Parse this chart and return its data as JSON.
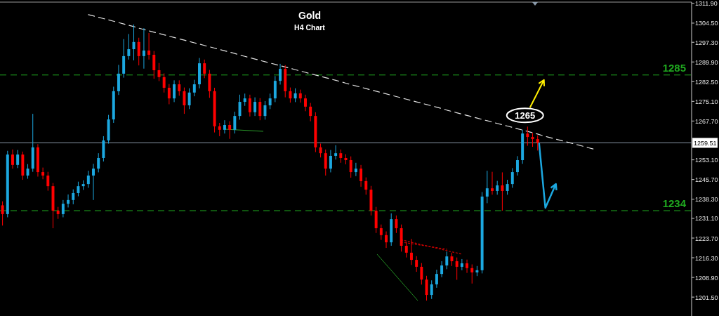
{
  "chart_data": {
    "type": "candlestick",
    "title": "Gold",
    "subtitle": "H4 Chart",
    "categories": [
      null,
      null,
      null,
      null,
      null,
      null,
      null,
      null,
      null,
      null,
      null,
      null,
      null,
      null,
      null,
      null,
      null,
      null,
      null,
      null,
      null,
      null,
      null,
      null,
      null,
      null,
      null,
      null,
      null,
      null,
      null,
      null,
      null,
      null,
      null,
      null,
      null,
      null,
      null,
      null,
      null,
      null,
      null,
      null,
      null,
      null,
      null,
      null,
      null,
      null,
      null,
      null,
      null,
      null,
      null,
      null,
      null,
      null,
      null,
      null,
      null,
      null,
      null,
      null,
      null,
      null,
      null,
      null,
      null,
      null,
      null,
      null,
      null,
      null,
      null,
      null,
      null,
      null,
      null,
      null,
      null,
      null,
      null,
      null,
      null,
      null,
      null,
      null,
      null,
      null,
      null,
      null,
      null,
      null,
      null,
      null,
      null,
      null,
      null,
      null,
      null,
      null,
      null,
      null,
      null,
      null,
      null,
      null,
      null,
      null,
      null,
      null,
      null,
      null,
      null,
      null,
      null,
      null,
      null,
      null,
      null,
      null,
      null,
      null,
      null,
      null,
      null,
      null,
      null,
      null,
      null,
      null,
      null,
      null,
      null,
      null,
      null
    ],
    "ohlc": [
      [
        1236.0,
        1237.5,
        1228.4,
        1232.7
      ],
      [
        1232.7,
        1256.5,
        1231.5,
        1255.1
      ],
      [
        1255.1,
        1257.0,
        1249.8,
        1251.2
      ],
      [
        1251.2,
        1256.8,
        1250.0,
        1255.1
      ],
      [
        1255.1,
        1256.2,
        1245.6,
        1247.2
      ],
      [
        1247.2,
        1251.5,
        1246.0,
        1249.8
      ],
      [
        1249.8,
        1270.4,
        1248.6,
        1257.8
      ],
      [
        1257.8,
        1259.0,
        1246.8,
        1248.5
      ],
      [
        1248.5,
        1250.2,
        1245.8,
        1247.2
      ],
      [
        1247.2,
        1248.6,
        1241.5,
        1243.2
      ],
      [
        1243.2,
        1244.4,
        1227.4,
        1234.0
      ],
      [
        1234.0,
        1235.4,
        1230.9,
        1232.7
      ],
      [
        1232.7,
        1238.0,
        1231.5,
        1236.6
      ],
      [
        1236.6,
        1240.1,
        1235.2,
        1238.0
      ],
      [
        1238.0,
        1242.0,
        1236.4,
        1240.6
      ],
      [
        1240.6,
        1244.9,
        1239.4,
        1243.2
      ],
      [
        1243.2,
        1245.4,
        1241.8,
        1244.0
      ],
      [
        1244.0,
        1249.0,
        1242.6,
        1247.2
      ],
      [
        1247.2,
        1251.6,
        1238.0,
        1249.8
      ],
      [
        1249.8,
        1255.6,
        1248.4,
        1253.8
      ],
      [
        1253.8,
        1262.0,
        1252.5,
        1260.4
      ],
      [
        1260.4,
        1270.0,
        1259.2,
        1268.3
      ],
      [
        1268.3,
        1280.6,
        1267.0,
        1278.9
      ],
      [
        1278.9,
        1288.8,
        1277.5,
        1285.5
      ],
      [
        1285.5,
        1298.5,
        1284.0,
        1292.1
      ],
      [
        1292.1,
        1300.4,
        1290.8,
        1294.7
      ],
      [
        1294.7,
        1304.0,
        1290.5,
        1297.4
      ],
      [
        1297.4,
        1299.0,
        1288.6,
        1292.1
      ],
      [
        1292.1,
        1302.6,
        1287.4,
        1294.2
      ],
      [
        1294.2,
        1300.8,
        1290.8,
        1292.6
      ],
      [
        1292.6,
        1294.0,
        1283.6,
        1286.8
      ],
      [
        1286.8,
        1289.5,
        1282.7,
        1284.2
      ],
      [
        1284.2,
        1285.6,
        1278.4,
        1280.2
      ],
      [
        1280.2,
        1281.6,
        1274.0,
        1276.2
      ],
      [
        1276.2,
        1283.0,
        1274.8,
        1281.5
      ],
      [
        1281.5,
        1283.0,
        1277.2,
        1278.9
      ],
      [
        1278.9,
        1280.3,
        1270.4,
        1273.6
      ],
      [
        1273.6,
        1280.0,
        1272.2,
        1278.4
      ],
      [
        1278.4,
        1283.2,
        1277.0,
        1281.5
      ],
      [
        1281.5,
        1291.4,
        1280.0,
        1289.4
      ],
      [
        1289.4,
        1290.8,
        1283.8,
        1285.5
      ],
      [
        1285.5,
        1286.9,
        1276.4,
        1278.9
      ],
      [
        1278.9,
        1280.2,
        1263.4,
        1265.7
      ],
      [
        1265.7,
        1267.0,
        1262.0,
        1264.4
      ],
      [
        1264.4,
        1268.0,
        1263.0,
        1266.2
      ],
      [
        1266.2,
        1267.6,
        1261.0,
        1264.4
      ],
      [
        1264.4,
        1271.2,
        1263.0,
        1269.6
      ],
      [
        1269.6,
        1277.6,
        1268.2,
        1274.9
      ],
      [
        1274.9,
        1278.0,
        1273.4,
        1276.2
      ],
      [
        1276.2,
        1277.6,
        1269.4,
        1271.0
      ],
      [
        1271.0,
        1276.6,
        1269.6,
        1274.9
      ],
      [
        1274.9,
        1276.3,
        1268.0,
        1269.6
      ],
      [
        1269.6,
        1275.2,
        1268.2,
        1273.6
      ],
      [
        1273.6,
        1278.0,
        1272.2,
        1276.2
      ],
      [
        1276.2,
        1284.6,
        1274.8,
        1282.8
      ],
      [
        1282.8,
        1289.2,
        1281.4,
        1287.3
      ],
      [
        1287.3,
        1288.7,
        1276.6,
        1278.9
      ],
      [
        1278.9,
        1280.3,
        1274.6,
        1276.2
      ],
      [
        1276.2,
        1280.0,
        1274.8,
        1278.1
      ],
      [
        1278.1,
        1279.5,
        1274.6,
        1276.2
      ],
      [
        1276.2,
        1277.6,
        1271.4,
        1273.1
      ],
      [
        1273.1,
        1274.5,
        1267.6,
        1269.6
      ],
      [
        1269.6,
        1271.0,
        1256.0,
        1257.8
      ],
      [
        1257.8,
        1259.2,
        1254.0,
        1255.6
      ],
      [
        1255.6,
        1257.0,
        1247.2,
        1249.8
      ],
      [
        1249.8,
        1256.8,
        1248.4,
        1254.6
      ],
      [
        1254.6,
        1258.6,
        1253.2,
        1255.6
      ],
      [
        1255.6,
        1257.0,
        1252.0,
        1253.8
      ],
      [
        1253.8,
        1255.2,
        1251.4,
        1253.0
      ],
      [
        1253.0,
        1254.4,
        1246.4,
        1248.5
      ],
      [
        1248.5,
        1252.0,
        1247.0,
        1249.8
      ],
      [
        1249.8,
        1251.2,
        1243.0,
        1245.1
      ],
      [
        1245.1,
        1246.5,
        1240.0,
        1241.9
      ],
      [
        1241.9,
        1243.3,
        1232.2,
        1234.0
      ],
      [
        1234.0,
        1235.4,
        1225.6,
        1227.4
      ],
      [
        1227.4,
        1228.8,
        1223.0,
        1224.8
      ],
      [
        1224.8,
        1226.2,
        1220.0,
        1222.1
      ],
      [
        1222.1,
        1233.0,
        1220.8,
        1230.8
      ],
      [
        1230.8,
        1232.2,
        1225.6,
        1227.4
      ],
      [
        1227.4,
        1228.8,
        1218.6,
        1220.8
      ],
      [
        1220.8,
        1222.2,
        1216.4,
        1218.2
      ],
      [
        1218.2,
        1223.4,
        1213.6,
        1215.5
      ],
      [
        1215.5,
        1216.9,
        1211.0,
        1212.9
      ],
      [
        1212.9,
        1214.3,
        1206.2,
        1208.1
      ],
      [
        1208.1,
        1209.5,
        1200.2,
        1202.3
      ],
      [
        1202.3,
        1207.8,
        1200.8,
        1206.3
      ],
      [
        1206.3,
        1211.8,
        1205.0,
        1210.2
      ],
      [
        1210.2,
        1215.0,
        1209.0,
        1213.4
      ],
      [
        1213.4,
        1218.6,
        1212.0,
        1216.8
      ],
      [
        1216.8,
        1218.2,
        1213.2,
        1215.0
      ],
      [
        1215.0,
        1216.4,
        1208.0,
        1212.9
      ],
      [
        1212.9,
        1215.8,
        1211.6,
        1214.2
      ],
      [
        1214.2,
        1215.6,
        1210.6,
        1212.4
      ],
      [
        1212.4,
        1213.8,
        1206.6,
        1210.8
      ],
      [
        1210.8,
        1213.2,
        1209.4,
        1211.6
      ],
      [
        1211.6,
        1241.0,
        1210.4,
        1239.3
      ],
      [
        1239.3,
        1249.0,
        1236.8,
        1242.4
      ],
      [
        1242.4,
        1248.6,
        1240.0,
        1241.4
      ],
      [
        1241.4,
        1245.2,
        1240.0,
        1243.5
      ],
      [
        1243.5,
        1248.4,
        1234.0,
        1241.4
      ],
      [
        1241.4,
        1245.6,
        1240.0,
        1244.0
      ],
      [
        1244.0,
        1250.0,
        1242.6,
        1248.5
      ],
      [
        1248.5,
        1254.5,
        1247.2,
        1253.0
      ],
      [
        1253.0,
        1264.4,
        1251.6,
        1263.0
      ],
      [
        1263.0,
        1265.6,
        1258.4,
        1261.7
      ],
      [
        1261.7,
        1263.2,
        1258.0,
        1260.9
      ],
      [
        1260.9,
        1262.3,
        1256.6,
        1259.5
      ],
      null,
      null,
      null,
      null,
      null,
      null,
      null,
      null,
      null,
      null,
      null,
      null,
      null,
      null,
      null,
      null,
      null,
      null,
      null,
      null,
      null,
      null,
      null,
      null,
      null,
      null,
      null,
      null,
      null,
      null
    ],
    "series": [
      {
        "type": "line",
        "color": "#e0e0e0",
        "line_style": "dashed",
        "values": [
          null,
          null,
          null,
          null,
          null,
          null,
          null,
          null,
          null,
          null,
          null,
          null,
          null,
          null,
          null,
          null,
          null,
          1307.7,
          1307.2,
          1306.7,
          1306.2,
          1305.7,
          1305.2,
          1304.7,
          1304.2,
          1303.7,
          1303.2,
          1302.6,
          1302.1,
          1301.6,
          1301.1,
          1300.6,
          1300.1,
          1299.6,
          1299.1,
          1298.6,
          1298.1,
          1297.6,
          1297.1,
          1296.6,
          1296.1,
          1295.6,
          1295.1,
          1294.6,
          1294.1,
          1293.6,
          1293.1,
          1292.5,
          1292.0,
          1291.5,
          1291.0,
          1290.5,
          1290.0,
          1289.5,
          1289.0,
          1288.5,
          1288.0,
          1287.5,
          1287.0,
          1286.5,
          1286.0,
          1285.5,
          1285.0,
          1284.5,
          1284.0,
          1283.5,
          1283.0,
          1282.5,
          1281.9,
          1281.4,
          1280.9,
          1280.4,
          1279.9,
          1279.4,
          1278.9,
          1278.4,
          1277.9,
          1277.4,
          1276.9,
          1276.4,
          1275.9,
          1275.4,
          1274.9,
          1274.4,
          1273.9,
          1273.4,
          1272.9,
          1272.4,
          1271.8,
          1271.3,
          1270.8,
          1270.3,
          1269.8,
          1269.3,
          1268.8,
          1268.3,
          1267.8,
          1267.3,
          1266.8,
          1266.3,
          1265.8,
          1265.3,
          1264.8,
          1264.3,
          1263.8,
          1263.3,
          1262.8,
          1262.2,
          1261.7,
          1261.2,
          1260.7,
          1260.2,
          1259.7,
          1259.2,
          1258.7,
          1258.2,
          1257.7,
          1257.2,
          null,
          null,
          null,
          null,
          null,
          null,
          null,
          null,
          null,
          null,
          null,
          null,
          null,
          null,
          null,
          null,
          null,
          null,
          null
        ]
      },
      {
        "type": "line",
        "color": "#cc0000",
        "line_style": "dotted",
        "values": [
          null,
          null,
          null,
          null,
          null,
          null,
          null,
          null,
          null,
          null,
          null,
          null,
          null,
          null,
          null,
          null,
          null,
          null,
          null,
          null,
          null,
          null,
          null,
          null,
          null,
          null,
          null,
          null,
          null,
          null,
          null,
          null,
          null,
          null,
          null,
          null,
          null,
          null,
          null,
          null,
          null,
          null,
          null,
          null,
          null,
          null,
          null,
          null,
          null,
          null,
          null,
          null,
          null,
          null,
          null,
          null,
          null,
          null,
          null,
          null,
          null,
          null,
          null,
          null,
          null,
          null,
          null,
          null,
          null,
          null,
          null,
          null,
          null,
          null,
          null,
          null,
          null,
          null,
          null,
          1223.0,
          1222.6,
          1222.1,
          1221.7,
          1221.2,
          1220.8,
          1220.3,
          1219.9,
          1219.4,
          1219.0,
          1218.5,
          1218.1,
          1217.6,
          null,
          null,
          null,
          null,
          null,
          null,
          null,
          null,
          null,
          null,
          null,
          null,
          null,
          null,
          null,
          null,
          null,
          null,
          null,
          null,
          null,
          null,
          null,
          null,
          null,
          null,
          null,
          null,
          null,
          null,
          null,
          null,
          null,
          null,
          null,
          null,
          null,
          null,
          null,
          null,
          null,
          null,
          null,
          null,
          null
        ]
      },
      {
        "type": "line",
        "color": "#cc0000",
        "line_style": "dotted",
        "values": [
          null,
          null,
          null,
          null,
          null,
          null,
          null,
          null,
          null,
          null,
          null,
          null,
          null,
          null,
          null,
          null,
          null,
          null,
          null,
          null,
          null,
          null,
          null,
          null,
          null,
          null,
          null,
          null,
          null,
          null,
          null,
          null,
          null,
          null,
          null,
          null,
          null,
          null,
          null,
          null,
          null,
          null,
          null,
          null,
          null,
          null,
          null,
          null,
          null,
          null,
          null,
          null,
          null,
          null,
          null,
          null,
          null,
          null,
          null,
          null,
          null,
          null,
          null,
          null,
          null,
          null,
          null,
          null,
          null,
          null,
          null,
          null,
          null,
          null,
          null,
          null,
          null,
          null,
          null,
          1222.2,
          1221.9,
          1221.6,
          1221.3,
          1221.0,
          1220.7,
          1220.4,
          1220.1,
          1219.8,
          1219.5,
          null,
          null,
          null,
          null,
          null,
          null,
          null,
          null,
          null,
          null,
          null,
          null,
          null,
          null,
          null,
          null,
          null,
          null,
          null,
          null,
          null,
          null,
          null,
          null,
          null,
          null,
          null,
          null,
          null,
          null,
          null,
          null,
          null,
          null,
          null,
          null,
          null,
          null,
          null,
          null,
          null,
          null,
          null,
          null,
          null,
          null,
          null,
          null
        ]
      }
    ],
    "ylim": [
      1194.4,
      1312.4
    ],
    "yticks": [
      {
        "value": 1311.9,
        "label": "1311.90"
      },
      {
        "value": 1304.5,
        "label": "1304.50"
      },
      {
        "value": 1297.3,
        "label": "1297.30"
      },
      {
        "value": 1289.9,
        "label": "1289.90"
      },
      {
        "value": 1282.5,
        "label": "1282.50"
      },
      {
        "value": 1275.1,
        "label": "1275.10"
      },
      {
        "value": 1267.7,
        "label": "1267.70"
      },
      {
        "value": 1253.1,
        "label": "1253.10"
      },
      {
        "value": 1245.7,
        "label": "1245.70"
      },
      {
        "value": 1238.3,
        "label": "1238.30"
      },
      {
        "value": 1231.1,
        "label": "1231.10"
      },
      {
        "value": 1223.7,
        "label": "1223.70"
      },
      {
        "value": 1216.3,
        "label": "1216.30"
      },
      {
        "value": 1208.9,
        "label": "1208.90"
      },
      {
        "value": 1201.5,
        "label": "1201.50"
      }
    ],
    "tick_labels": "y",
    "ref_lines": [
      {
        "axis": "y",
        "value": 1285,
        "label": "1285",
        "color": "#1fa81f",
        "line_style": "dashed"
      },
      {
        "axis": "y",
        "value": 1234,
        "label": "1234",
        "color": "#1fa81f",
        "line_style": "dashed"
      },
      {
        "axis": "y",
        "value": 1259.51,
        "label": "1259.51",
        "color": "#8797a6",
        "line_style": "solid"
      }
    ],
    "annotations": [
      "1265"
    ]
  }
}
